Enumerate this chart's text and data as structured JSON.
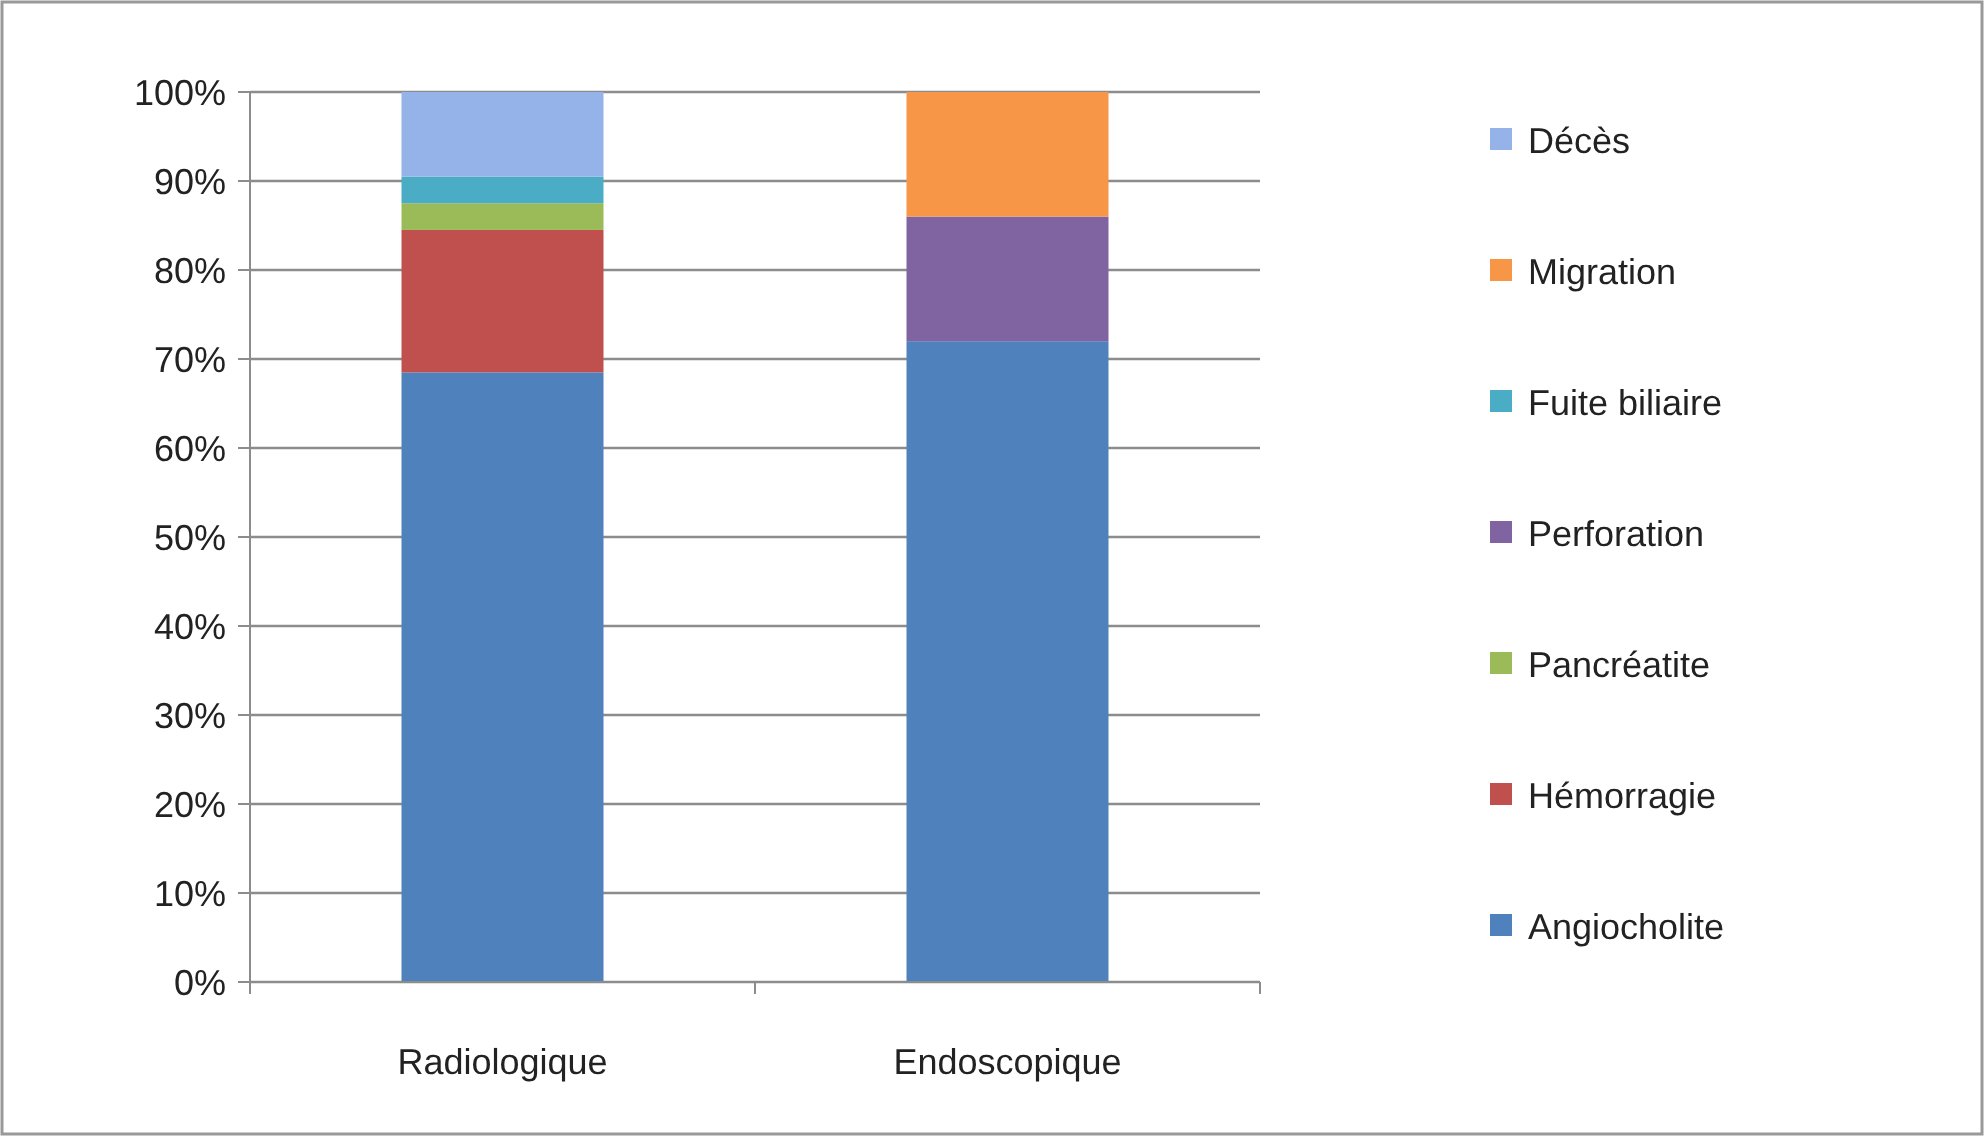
{
  "chart_data": {
    "type": "bar",
    "stacked": true,
    "categories": [
      "Radiologique",
      "Endoscopique"
    ],
    "series": [
      {
        "name": "Angiocholite",
        "color": "#4f81bd",
        "values": [
          68.5,
          72
        ]
      },
      {
        "name": "Hémorragie",
        "color": "#c0504d",
        "values": [
          16,
          null
        ]
      },
      {
        "name": "Pancréatite",
        "color": "#9bbb59",
        "values": [
          3,
          null
        ]
      },
      {
        "name": "Perforation",
        "color": "#8064a2",
        "values": [
          null,
          14
        ]
      },
      {
        "name": "Fuite biliaire",
        "color": "#4bacc6",
        "values": [
          3,
          null
        ]
      },
      {
        "name": "Migration",
        "color": "#f79646",
        "values": [
          null,
          14
        ]
      },
      {
        "name": "Décès",
        "color": "#95b3e8",
        "values": [
          9.5,
          null
        ]
      }
    ],
    "ylim": [
      0,
      100
    ],
    "yticks": [
      {
        "value": 0,
        "label": "0%"
      },
      {
        "value": 10,
        "label": "10%"
      },
      {
        "value": 20,
        "label": "20%"
      },
      {
        "value": 30,
        "label": "30%"
      },
      {
        "value": 40,
        "label": "40%"
      },
      {
        "value": 50,
        "label": "50%"
      },
      {
        "value": 60,
        "label": "60%"
      },
      {
        "value": 70,
        "label": "70%"
      },
      {
        "value": 80,
        "label": "80%"
      },
      {
        "value": 90,
        "label": "90%"
      },
      {
        "value": 100,
        "label": "100%"
      }
    ],
    "grid": "y",
    "legend": "right"
  }
}
